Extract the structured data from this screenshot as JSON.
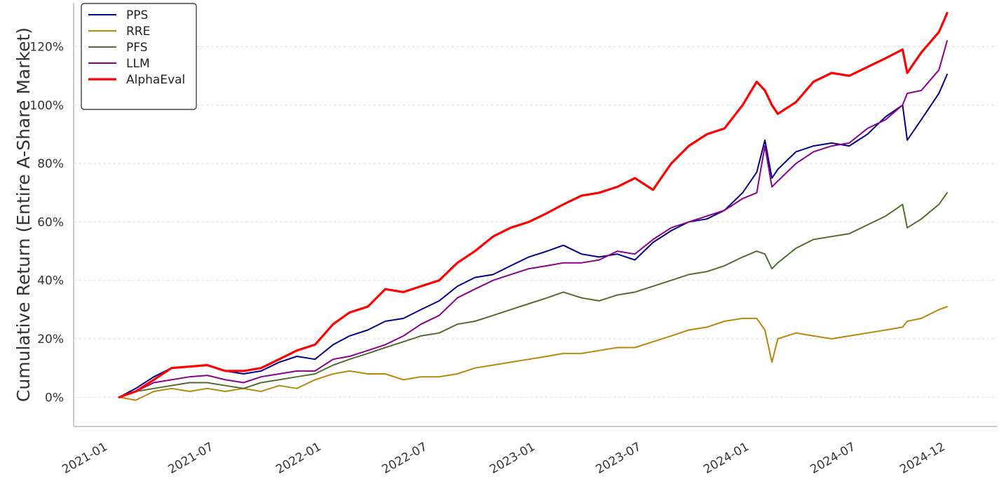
{
  "chart_data": {
    "type": "line",
    "title": "",
    "xlabel": "",
    "ylabel": "Cumulative Return (Entire A-Share Market)",
    "x_ticks": [
      "2021-01",
      "2021-07",
      "2022-01",
      "2022-07",
      "2023-01",
      "2023-07",
      "2024-01",
      "2024-07",
      "2024-12"
    ],
    "y_ticks": [
      "0%",
      "20%",
      "40%",
      "60%",
      "80%",
      "100%",
      "120%"
    ],
    "y_tick_values": [
      0,
      20,
      40,
      60,
      80,
      100,
      120
    ],
    "xlim": [
      "2020-11-15",
      "2025-03-10"
    ],
    "ylim": [
      -10,
      135
    ],
    "grid": "horizontal, dashed",
    "legend_position": "top-left",
    "x": [
      "2021-02-01",
      "2021-03-01",
      "2021-04-01",
      "2021-05-01",
      "2021-06-01",
      "2021-07-01",
      "2021-08-01",
      "2021-09-01",
      "2021-10-01",
      "2021-11-01",
      "2021-12-01",
      "2022-01-01",
      "2022-02-01",
      "2022-03-01",
      "2022-04-01",
      "2022-05-01",
      "2022-06-01",
      "2022-07-01",
      "2022-08-01",
      "2022-09-01",
      "2022-10-01",
      "2022-11-01",
      "2022-12-01",
      "2023-01-01",
      "2023-02-01",
      "2023-03-01",
      "2023-04-01",
      "2023-05-01",
      "2023-06-01",
      "2023-07-01",
      "2023-08-01",
      "2023-09-01",
      "2023-10-01",
      "2023-11-01",
      "2023-12-01",
      "2024-01-01",
      "2024-01-25",
      "2024-02-08",
      "2024-02-20",
      "2024-03-01",
      "2024-04-01",
      "2024-05-01",
      "2024-06-01",
      "2024-07-01",
      "2024-08-01",
      "2024-09-01",
      "2024-09-30",
      "2024-10-08",
      "2024-11-01",
      "2024-12-01",
      "2024-12-15"
    ],
    "series": [
      {
        "name": "PPS",
        "color": "#00008b",
        "width": 2,
        "values": [
          0,
          3,
          7,
          10,
          10.5,
          11,
          9,
          8,
          9,
          12,
          14,
          13,
          18,
          21,
          23,
          26,
          27,
          30,
          33,
          38,
          41,
          42,
          45,
          48,
          50,
          52,
          49,
          48,
          49,
          47,
          53,
          57,
          60,
          61,
          64,
          70,
          77,
          88,
          75,
          78,
          84,
          86,
          87,
          86,
          90,
          96,
          100,
          88,
          95,
          104,
          110.5
        ]
      },
      {
        "name": "RRE",
        "color": "#b8860b",
        "width": 2,
        "values": [
          0,
          -1,
          2,
          3,
          2,
          3,
          2,
          3,
          2,
          4,
          3,
          6,
          8,
          9,
          8,
          8,
          6,
          7,
          7,
          8,
          10,
          11,
          12,
          13,
          14,
          15,
          15,
          16,
          17,
          17,
          19,
          21,
          23,
          24,
          26,
          27,
          27,
          23,
          12,
          20,
          22,
          21,
          20,
          21,
          22,
          23,
          24,
          26,
          27,
          30,
          31
        ]
      },
      {
        "name": "PFS",
        "color": "#556b2f",
        "width": 2,
        "values": [
          0,
          2,
          3,
          4,
          5,
          5,
          4,
          3,
          5,
          6,
          7,
          8,
          11,
          13,
          15,
          17,
          19,
          21,
          22,
          25,
          26,
          28,
          30,
          32,
          34,
          36,
          34,
          33,
          35,
          36,
          38,
          40,
          42,
          43,
          45,
          48,
          50,
          49,
          44,
          46,
          51,
          54,
          55,
          56,
          59,
          62,
          66,
          58,
          61,
          66,
          70
        ]
      },
      {
        "name": "LLM",
        "color": "#8b008b",
        "width": 2,
        "values": [
          0,
          2,
          5,
          6,
          7,
          7.5,
          6,
          5,
          7,
          8,
          9,
          9,
          13,
          14,
          16,
          18,
          21,
          25,
          28,
          34,
          37,
          40,
          42,
          44,
          45,
          46,
          46,
          47,
          50,
          49,
          54,
          58,
          60,
          62,
          64,
          68,
          70,
          86,
          72,
          74,
          80,
          84,
          86,
          87,
          92,
          95,
          100,
          104,
          105,
          112,
          122
        ]
      },
      {
        "name": "AlphaEval",
        "color": "#ff0000",
        "width": 3.2,
        "values": [
          0,
          2,
          6,
          10,
          10.5,
          11,
          9,
          9,
          10,
          13,
          16,
          18,
          25,
          29,
          31,
          37,
          36,
          38,
          40,
          46,
          50,
          55,
          58,
          60,
          63,
          66,
          69,
          70,
          72,
          75,
          71,
          80,
          86,
          90,
          92,
          100,
          108,
          105,
          100,
          97,
          101,
          108,
          111,
          110,
          113,
          116,
          119,
          111,
          118,
          125,
          131.5
        ]
      }
    ]
  }
}
